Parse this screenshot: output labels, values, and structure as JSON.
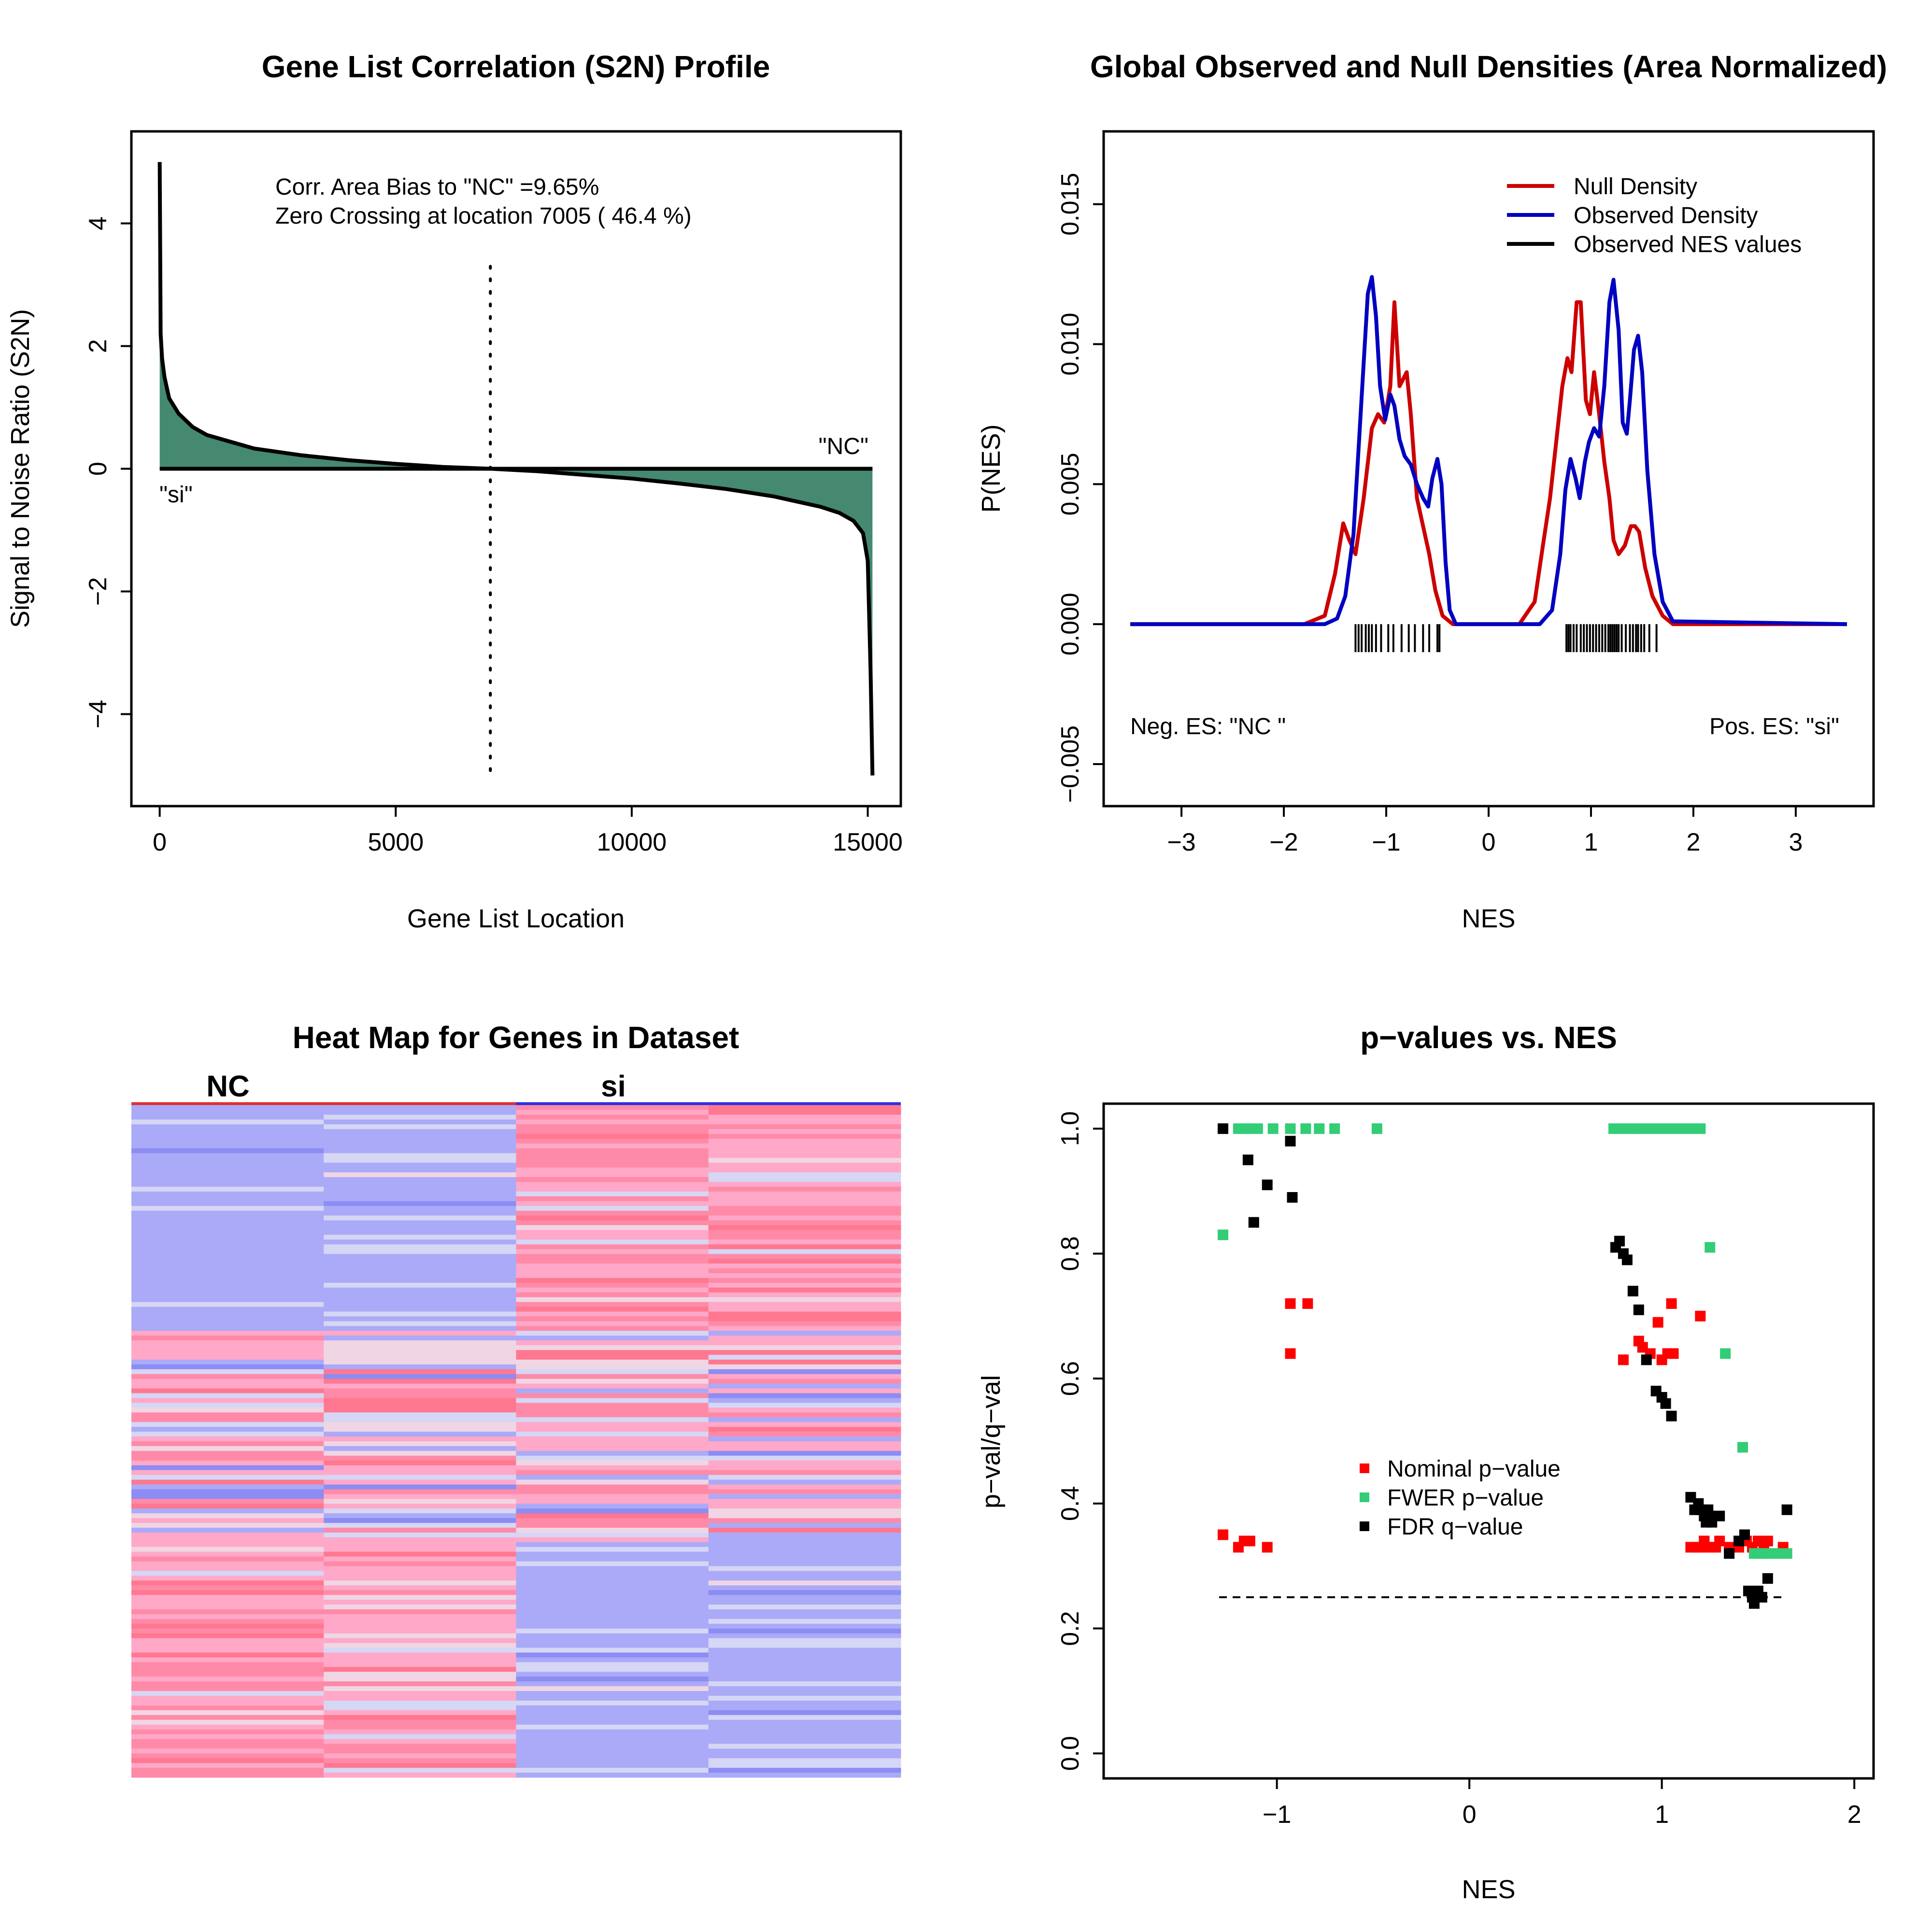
{
  "chart_data": [
    {
      "type": "area",
      "title": "Gene List Correlation (S2N) Profile",
      "xlabel": "Gene List Location",
      "ylabel": "Signal to Noise Ratio (S2N)",
      "xlim": [
        0,
        15100
      ],
      "ylim": [
        -5,
        5
      ],
      "xticks": [
        0,
        5000,
        10000,
        15000
      ],
      "yticks": [
        -4,
        -2,
        0,
        2,
        4
      ],
      "xtick_labels": [
        "0",
        "5000",
        "10000",
        "15000"
      ],
      "ytick_labels": [
        "−4",
        "−2",
        "0",
        "2",
        "4"
      ],
      "annotations": [
        "Corr. Area Bias to \"NC\" =9.65%",
        "Zero Crossing at location  7005  ( 46.4  %)"
      ],
      "left_label": "\"si\"",
      "right_label": "\"NC\"",
      "zero_crossing": 7005,
      "fill_color": "#448970",
      "x": [
        0,
        20,
        50,
        100,
        200,
        400,
        700,
        1000,
        2000,
        3000,
        4000,
        5000,
        6000,
        7005,
        8000,
        9000,
        10000,
        11000,
        12000,
        13000,
        14000,
        14400,
        14700,
        14900,
        15000,
        15060,
        15100
      ],
      "y": [
        5.0,
        2.2,
        1.8,
        1.5,
        1.15,
        0.9,
        0.68,
        0.55,
        0.33,
        0.22,
        0.14,
        0.08,
        0.03,
        0.0,
        -0.04,
        -0.1,
        -0.16,
        -0.24,
        -0.33,
        -0.45,
        -0.62,
        -0.72,
        -0.85,
        -1.05,
        -1.5,
        -3.3,
        -5.0
      ]
    },
    {
      "type": "line",
      "title": "Global Observed and Null Densities (Area Normalized)",
      "xlabel": "NES",
      "ylabel": "P(NES)",
      "xlim": [
        -3.5,
        3.5
      ],
      "ylim": [
        -0.005,
        0.016
      ],
      "xticks": [
        -3,
        -2,
        -1,
        0,
        1,
        2,
        3
      ],
      "yticks": [
        -0.005,
        0.0,
        0.005,
        0.01,
        0.015
      ],
      "xtick_labels": [
        "−3",
        "−2",
        "−1",
        "0",
        "1",
        "2",
        "3"
      ],
      "ytick_labels": [
        "−0.005",
        "0.000",
        "0.005",
        "0.010",
        "0.015"
      ],
      "legend": [
        "Null Density",
        "Observed Density",
        "Observed NES values"
      ],
      "legend_position": "top-right",
      "left_label": "Neg. ES: \"NC \"",
      "right_label": "Pos. ES: \"si\"",
      "series": [
        {
          "name": "Null Density",
          "color": "#cc0000",
          "x": [
            -3.5,
            -1.8,
            -1.6,
            -1.5,
            -1.42,
            -1.36,
            -1.3,
            -1.22,
            -1.14,
            -1.08,
            -1.02,
            -0.96,
            -0.92,
            -0.87,
            -0.8,
            -0.76,
            -0.7,
            -0.64,
            -0.58,
            -0.52,
            -0.45,
            -0.35,
            -0.3,
            0.3,
            0.45,
            0.53,
            0.6,
            0.66,
            0.72,
            0.77,
            0.81,
            0.86,
            0.9,
            0.95,
            0.99,
            1.03,
            1.08,
            1.13,
            1.18,
            1.22,
            1.27,
            1.33,
            1.39,
            1.43,
            1.47,
            1.53,
            1.6,
            1.7,
            1.8,
            3.5
          ],
          "y": [
            0,
            0,
            0.0003,
            0.0018,
            0.0036,
            0.003,
            0.0025,
            0.0045,
            0.007,
            0.0075,
            0.0072,
            0.0085,
            0.0115,
            0.0085,
            0.009,
            0.0075,
            0.0045,
            0.0035,
            0.0025,
            0.0012,
            0.0003,
            0,
            0,
            0,
            0.0008,
            0.0028,
            0.0045,
            0.0065,
            0.0085,
            0.0095,
            0.009,
            0.0115,
            0.0115,
            0.008,
            0.0075,
            0.009,
            0.0075,
            0.0058,
            0.0045,
            0.003,
            0.0025,
            0.0028,
            0.0035,
            0.0035,
            0.0033,
            0.002,
            0.001,
            0.0003,
            0,
            0
          ]
        },
        {
          "name": "Observed Density",
          "color": "#0000c0",
          "x": [
            -3.5,
            -1.6,
            -1.48,
            -1.4,
            -1.32,
            -1.25,
            -1.18,
            -1.14,
            -1.1,
            -1.06,
            -1.01,
            -0.96,
            -0.92,
            -0.87,
            -0.82,
            -0.76,
            -0.7,
            -0.64,
            -0.59,
            -0.55,
            -0.5,
            -0.46,
            -0.42,
            -0.38,
            -0.32,
            0.5,
            0.62,
            0.7,
            0.75,
            0.8,
            0.85,
            0.89,
            0.94,
            0.98,
            1.03,
            1.08,
            1.13,
            1.18,
            1.22,
            1.27,
            1.31,
            1.35,
            1.38,
            1.42,
            1.46,
            1.5,
            1.55,
            1.62,
            1.7,
            1.8,
            3.5
          ],
          "y": [
            0,
            0,
            0.0002,
            0.001,
            0.0032,
            0.0075,
            0.0118,
            0.0124,
            0.011,
            0.0085,
            0.0073,
            0.0082,
            0.0078,
            0.0066,
            0.006,
            0.0057,
            0.005,
            0.0045,
            0.0042,
            0.0052,
            0.0059,
            0.005,
            0.0022,
            0.0005,
            0,
            0,
            0.0005,
            0.0025,
            0.0048,
            0.0059,
            0.0052,
            0.0045,
            0.0058,
            0.0065,
            0.007,
            0.0067,
            0.0085,
            0.0115,
            0.0123,
            0.0105,
            0.0072,
            0.0068,
            0.008,
            0.0098,
            0.0103,
            0.009,
            0.0055,
            0.0025,
            0.0008,
            0.0001,
            0
          ]
        }
      ],
      "rug_values": [
        -1.3,
        -1.27,
        -1.24,
        -1.2,
        -1.17,
        -1.14,
        -1.1,
        -1.05,
        -0.98,
        -0.93,
        -0.85,
        -0.78,
        -0.72,
        -0.64,
        -0.58,
        -0.5,
        -0.48,
        0.76,
        0.78,
        0.8,
        0.83,
        0.86,
        0.9,
        0.93,
        0.96,
        0.99,
        1.02,
        1.05,
        1.08,
        1.11,
        1.14,
        1.17,
        1.19,
        1.21,
        1.23,
        1.25,
        1.27,
        1.3,
        1.34,
        1.38,
        1.41,
        1.44,
        1.46,
        1.49,
        1.52,
        1.57,
        1.64
      ]
    },
    {
      "type": "heatmap",
      "title": "Heat Map for Genes in Dataset",
      "groups": [
        {
          "name": "NC",
          "color": "#e03030"
        },
        {
          "name": "si",
          "color": "#3030e0"
        }
      ],
      "columns": 4,
      "rows": 140,
      "colors": [
        "#aaaaf8",
        "#d6d6f5",
        "#f0d6e4",
        "#ffa8c8",
        "#ff8aa8",
        "#ff7890",
        "#8c8cf4"
      ]
    },
    {
      "type": "scatter",
      "title": "p−values vs. NES",
      "xlabel": "NES",
      "ylabel": "p−val/q−val",
      "xlim": [
        -1.9,
        2.1
      ],
      "ylim": [
        -0.04,
        1.04
      ],
      "xticks": [
        -1,
        0,
        1,
        2
      ],
      "yticks": [
        0.0,
        0.2,
        0.4,
        0.6,
        0.8,
        1.0
      ],
      "xtick_labels": [
        "−1",
        "0",
        "1",
        "2"
      ],
      "ytick_labels": [
        "0.0",
        "0.2",
        "0.4",
        "0.6",
        "0.8",
        "1.0"
      ],
      "legend": [
        "Nominal p−value",
        "FWER p−value",
        "FDR q−value"
      ],
      "legend_position": "center",
      "threshold": 0.25,
      "threshold_xrange": [
        -1.3,
        1.65
      ],
      "series": [
        {
          "name": "Nominal p−value",
          "color": "#ff0000",
          "x": [
            -1.28,
            -1.2,
            -1.17,
            -1.14,
            -1.05,
            -0.93,
            -0.93,
            -0.84,
            0.8,
            0.88,
            0.9,
            0.94,
            0.98,
            1.0,
            1.03,
            1.05,
            1.06,
            1.2,
            1.22,
            1.15,
            1.18,
            1.2,
            1.22,
            1.25,
            1.28,
            1.3,
            1.35,
            1.4,
            1.44,
            1.47,
            1.5,
            1.53,
            1.55,
            1.63
          ],
          "y": [
            0.35,
            0.33,
            0.34,
            0.34,
            0.33,
            0.72,
            0.64,
            0.72,
            0.63,
            0.66,
            0.65,
            0.64,
            0.69,
            0.63,
            0.64,
            0.72,
            0.64,
            0.7,
            0.34,
            0.33,
            0.33,
            0.33,
            0.34,
            0.33,
            0.33,
            0.34,
            0.33,
            0.33,
            0.34,
            0.33,
            0.34,
            0.33,
            0.34,
            0.33
          ]
        },
        {
          "name": "FWER p−value",
          "color": "#33cc77",
          "x": [
            -1.28,
            -1.2,
            -1.15,
            -1.1,
            -1.02,
            -0.93,
            -0.85,
            -0.78,
            -0.7,
            -0.48,
            0.75,
            0.8,
            0.85,
            0.9,
            0.95,
            1.0,
            1.05,
            1.1,
            1.15,
            1.2,
            1.25,
            1.33,
            1.42,
            1.48,
            1.52,
            1.55,
            1.6,
            1.65
          ],
          "y": [
            0.83,
            1.0,
            1.0,
            1.0,
            1.0,
            1.0,
            1.0,
            1.0,
            1.0,
            1.0,
            1.0,
            1.0,
            1.0,
            1.0,
            1.0,
            1.0,
            1.0,
            1.0,
            1.0,
            1.0,
            0.81,
            0.64,
            0.49,
            0.32,
            0.32,
            0.32,
            0.32,
            0.32
          ]
        },
        {
          "name": "FDR q−value",
          "color": "#000000",
          "x": [
            -1.28,
            -1.15,
            -1.12,
            -1.05,
            -0.93,
            -0.92,
            0.76,
            0.78,
            0.8,
            0.82,
            0.85,
            0.88,
            0.92,
            0.97,
            1.0,
            1.02,
            1.05,
            1.15,
            1.17,
            1.19,
            1.2,
            1.22,
            1.23,
            1.24,
            1.25,
            1.26,
            1.3,
            1.35,
            1.4,
            1.43,
            1.45,
            1.47,
            1.48,
            1.5,
            1.52,
            1.55,
            1.65
          ],
          "y": [
            1.0,
            0.95,
            0.85,
            0.91,
            0.98,
            0.89,
            0.81,
            0.82,
            0.8,
            0.79,
            0.74,
            0.71,
            0.63,
            0.58,
            0.57,
            0.56,
            0.54,
            0.41,
            0.39,
            0.4,
            0.39,
            0.38,
            0.37,
            0.39,
            0.38,
            0.37,
            0.38,
            0.32,
            0.34,
            0.35,
            0.26,
            0.25,
            0.24,
            0.26,
            0.25,
            0.28,
            0.39
          ]
        }
      ]
    }
  ]
}
